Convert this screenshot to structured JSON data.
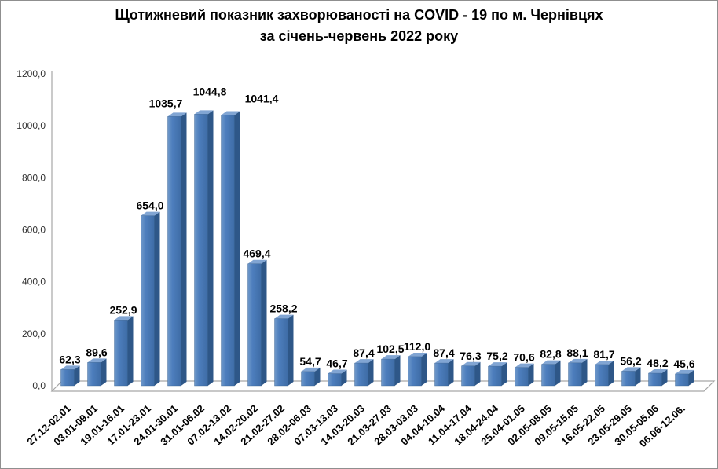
{
  "title": {
    "line1": "Щотижневий показник захворюваності на COVID - 19 по м. Чернівцях",
    "line2": "за січень-червень 2022 року"
  },
  "chart_data": {
    "type": "bar",
    "title": "Щотижневий показник захворюваності на COVID - 19 по м. Чернівцях за січень-червень 2022 року",
    "xlabel": "",
    "ylabel": "",
    "ylim": [
      0,
      1200
    ],
    "grid": false,
    "legend": false,
    "style": "3d-column",
    "categories": [
      "27.12-02.01",
      "03.01-09.01",
      "19.01-16.01",
      "17.01-23.01",
      "24.01-30.01",
      "31.01-06.02",
      "07.02-13.02",
      "14.02-20.02",
      "21.02-27.02",
      "28.02-06.03",
      "07.03-13.03",
      "14.03-20.03",
      "21.03-27.03",
      "28.03-03.03",
      "04.04-10.04",
      "11.04-17.04",
      "18.04-24.04",
      "25.04-01.05",
      "02.05-08.05",
      "09.05-15.05",
      "16.05-22.05",
      "23.05-29.05",
      "30.05-05.06",
      "06.06-12.06."
    ],
    "values": [
      62.3,
      89.6,
      252.9,
      654.0,
      1035.7,
      1044.8,
      1041.4,
      469.4,
      258.2,
      54.7,
      46.7,
      87.4,
      102.5,
      112.0,
      87.4,
      76.3,
      75.2,
      70.6,
      82.8,
      88.1,
      81.7,
      56.2,
      48.2,
      45.6
    ],
    "value_labels": [
      "62,3",
      "89,6",
      "252,9",
      "654,0",
      "1035,7",
      "1044,8",
      "1041,4",
      "469,4",
      "258,2",
      "54,7",
      "46,7",
      "87,4",
      "102,5",
      "112,0",
      "87,4",
      "76,3",
      "75,2",
      "70,6",
      "82,8",
      "88,1",
      "81,7",
      "56,2",
      "48,2",
      "45,6"
    ],
    "y_ticks": [
      "0,0",
      "200,0",
      "400,0",
      "600,0",
      "800,0",
      "1000,0",
      "1200,0"
    ],
    "colors": {
      "bar_front": "#4d7ebd",
      "bar_front_light": "#7099ca",
      "bar_front_dark": "#3e6ca6",
      "bar_side": "#2e5788",
      "bar_top": "#81a5d3",
      "bar_outline": "#38618f",
      "axis": "#a6a6a6",
      "label_text": "#000000",
      "tick_text": "#333333"
    },
    "label_offsets": {
      "4": {
        "dx": -14,
        "dy": -4
      },
      "5": {
        "dx": 8,
        "dy": -16
      },
      "6": {
        "dx": 40,
        "dy": -8
      }
    }
  }
}
